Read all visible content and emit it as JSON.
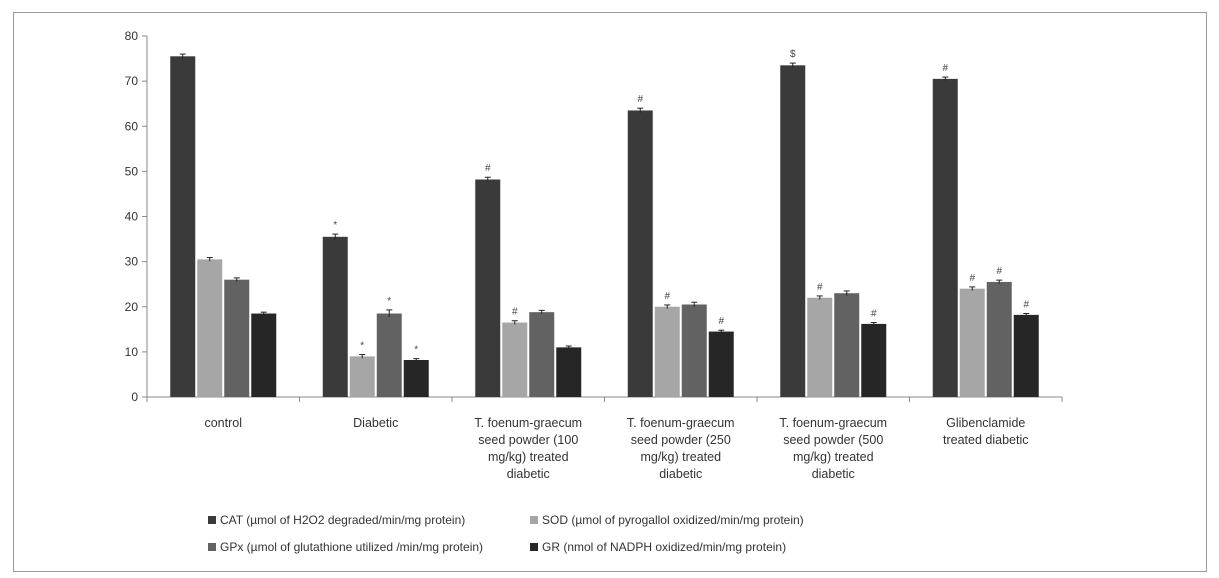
{
  "chart_data": {
    "type": "bar",
    "title": "",
    "xlabel": "",
    "ylabel": "",
    "ylim": [
      0,
      80
    ],
    "yticks": [
      0,
      10,
      20,
      30,
      40,
      50,
      60,
      70,
      80
    ],
    "grid": false,
    "legend_position": "bottom",
    "categories": [
      "control",
      "Diabetic",
      "T. foenum-graecum seed powder (100 mg/kg) treated diabetic",
      "T. foenum-graecum seed powder (250 mg/kg) treated diabetic",
      "T. foenum-graecum seed powder (500 mg/kg) treated diabetic",
      "Glibenclamide treated diabetic"
    ],
    "category_lines": [
      [
        "control"
      ],
      [
        "Diabetic"
      ],
      [
        "T. foenum-graecum",
        "seed powder (100",
        "mg/kg) treated",
        "diabetic"
      ],
      [
        "T. foenum-graecum",
        "seed powder (250",
        "mg/kg) treated",
        "diabetic"
      ],
      [
        "T. foenum-graecum",
        "seed powder (500",
        "mg/kg) treated",
        "diabetic"
      ],
      [
        "Glibenclamide",
        "treated diabetic"
      ]
    ],
    "series": [
      {
        "name": "CAT (µmol of H2O2 degraded/min/mg protein)",
        "color": "#3a3a3a",
        "values": [
          75.5,
          35.5,
          48.2,
          63.5,
          73.5,
          70.5
        ],
        "errors": [
          0.5,
          0.6,
          0.5,
          0.5,
          0.5,
          0.4
        ],
        "marks": [
          "",
          "*",
          "#",
          "#",
          "$",
          "#"
        ]
      },
      {
        "name": "SOD (µmol of pyrogallol oxidized/min/mg protein)",
        "color": "#a6a6a6",
        "values": [
          30.5,
          9.0,
          16.5,
          20.0,
          22.0,
          24.0
        ],
        "errors": [
          0.4,
          0.4,
          0.4,
          0.4,
          0.4,
          0.4
        ],
        "marks": [
          "",
          "*",
          "#",
          "#",
          "#",
          "#"
        ]
      },
      {
        "name": "GPx (µmol of glutathione utilized /min/mg protein)",
        "color": "#626262",
        "values": [
          26.0,
          18.5,
          18.8,
          20.5,
          23.0,
          25.5
        ],
        "errors": [
          0.4,
          0.8,
          0.4,
          0.5,
          0.5,
          0.4
        ],
        "marks": [
          "",
          "*",
          "",
          "",
          "",
          "#"
        ]
      },
      {
        "name": "GR (nmol of NADPH oxidized/min/mg protein)",
        "color": "#262626",
        "values": [
          18.5,
          8.2,
          11.0,
          14.5,
          16.2,
          18.2
        ],
        "errors": [
          0.3,
          0.3,
          0.3,
          0.3,
          0.3,
          0.3
        ],
        "marks": [
          "",
          "*",
          "",
          "#",
          "#",
          "#"
        ]
      }
    ]
  }
}
